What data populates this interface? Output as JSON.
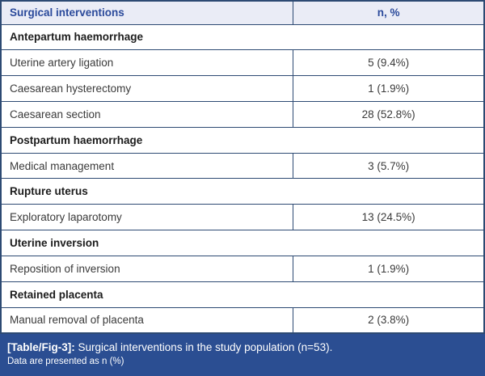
{
  "table": {
    "header": {
      "col1": "Surgical interventions",
      "col2": "n, %"
    },
    "rows": [
      {
        "type": "section",
        "label": "Antepartum haemorrhage"
      },
      {
        "type": "data",
        "label": "Uterine artery ligation",
        "value": "5 (9.4%)"
      },
      {
        "type": "data",
        "label": "Caesarean hysterectomy",
        "value": "1 (1.9%)"
      },
      {
        "type": "data",
        "label": "Caesarean section",
        "value": "28 (52.8%)"
      },
      {
        "type": "section",
        "label": "Postpartum haemorrhage"
      },
      {
        "type": "data",
        "label": "Medical management",
        "value": "3 (5.7%)"
      },
      {
        "type": "section",
        "label": "Rupture uterus"
      },
      {
        "type": "data",
        "label": "Exploratory laparotomy",
        "value": "13 (24.5%)"
      },
      {
        "type": "section",
        "label": "Uterine inversion"
      },
      {
        "type": "data",
        "label": "Reposition of inversion",
        "value": "1 (1.9%)"
      },
      {
        "type": "section",
        "label": "Retained placenta"
      },
      {
        "type": "data",
        "label": "Manual removal of placenta",
        "value": "2 (3.8%)"
      }
    ],
    "caption": {
      "tag": "[Table/Fig-3]:",
      "text": " Surgical interventions in the study population (n=53).",
      "note": "Data are presented as n (%)"
    },
    "colors": {
      "border": "#2d4a73",
      "header_bg": "#eaecf6",
      "header_text": "#2b4a9b",
      "caption_bg": "#2b4e92",
      "caption_text": "#ffffff",
      "body_text": "#3a3a3a",
      "section_text": "#1c1c1c"
    }
  },
  "chart_data": {
    "type": "table",
    "title": "Surgical interventions in the study population (n=53)",
    "columns": [
      "Surgical interventions",
      "n, %"
    ],
    "sections": [
      {
        "section": "Antepartum haemorrhage",
        "items": [
          {
            "label": "Uterine artery ligation",
            "n": 5,
            "percent": 9.4
          },
          {
            "label": "Caesarean hysterectomy",
            "n": 1,
            "percent": 1.9
          },
          {
            "label": "Caesarean section",
            "n": 28,
            "percent": 52.8
          }
        ]
      },
      {
        "section": "Postpartum haemorrhage",
        "items": [
          {
            "label": "Medical management",
            "n": 3,
            "percent": 5.7
          }
        ]
      },
      {
        "section": "Rupture uterus",
        "items": [
          {
            "label": "Exploratory laparotomy",
            "n": 13,
            "percent": 24.5
          }
        ]
      },
      {
        "section": "Uterine inversion",
        "items": [
          {
            "label": "Reposition of inversion",
            "n": 1,
            "percent": 1.9
          }
        ]
      },
      {
        "section": "Retained placenta",
        "items": [
          {
            "label": "Manual removal of placenta",
            "n": 2,
            "percent": 3.8
          }
        ]
      }
    ],
    "footnote": "Data are presented as n (%)"
  }
}
